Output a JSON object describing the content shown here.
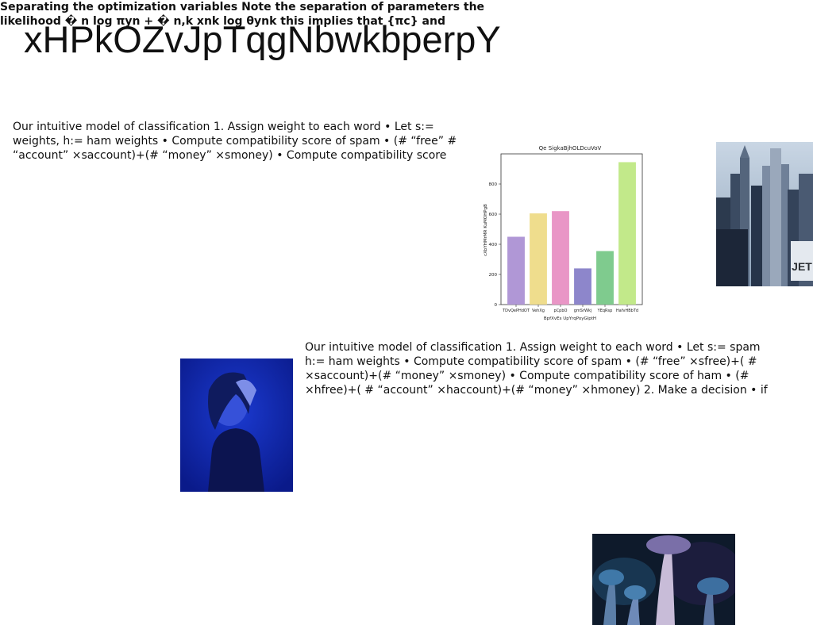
{
  "page": {
    "title": "xHPkOZvJpTqgNbwkbperpY",
    "text_block_1": "Our intuitive model of classification 1. Assign weight to each word • Let s:= weights, h:= ham weights • Compute compatibility score of spam • (# “free” # “account” ×saccount)+(# “money” ×smoney) • Compute compatibility score",
    "text_block_2": "Our intuitive model of classification 1. Assign weight to each word • Let s:= spam h:= ham weights • Compute compatibility score of spam • (# “free” ×sfree)+( # ×saccount)+(# “money” ×smoney) • Compute compatibility score of ham • (# ×hfree)+( # “account” ×haccount)+(# “money” ×hmoney) 2. Make a decision • if",
    "text_block_3": "Separating the optimization variables Note the separation of parameters the likelihood � n log πyn + � n,k xnk log θynk this implies that {πc} and"
  },
  "images": {
    "city": "city-skyline-photo",
    "person": "person-blue-light-photo",
    "mushrooms": "mushrooms-photo"
  },
  "chart_data": {
    "type": "bar",
    "title": "Qe SigkaBjhOLDcuVoV",
    "xlabel": "BpfXvEs UpYrqPoyGlptH",
    "ylabel": "cXbYHMrMR KuMOHPgB",
    "categories": [
      "TDvQePHdOT",
      "VehXg",
      "pCpbO",
      "gmSrWkj",
      "YEqRsp",
      "HafvHBbTd"
    ],
    "values": [
      450,
      605,
      620,
      240,
      355,
      945
    ],
    "colors": [
      "#b097d6",
      "#efdd8d",
      "#e996c6",
      "#8d86cb",
      "#7fcb8e",
      "#c2e98a"
    ],
    "yticks": [
      0,
      200,
      400,
      600,
      800
    ],
    "ylim": [
      0,
      1000
    ],
    "grid": false
  }
}
